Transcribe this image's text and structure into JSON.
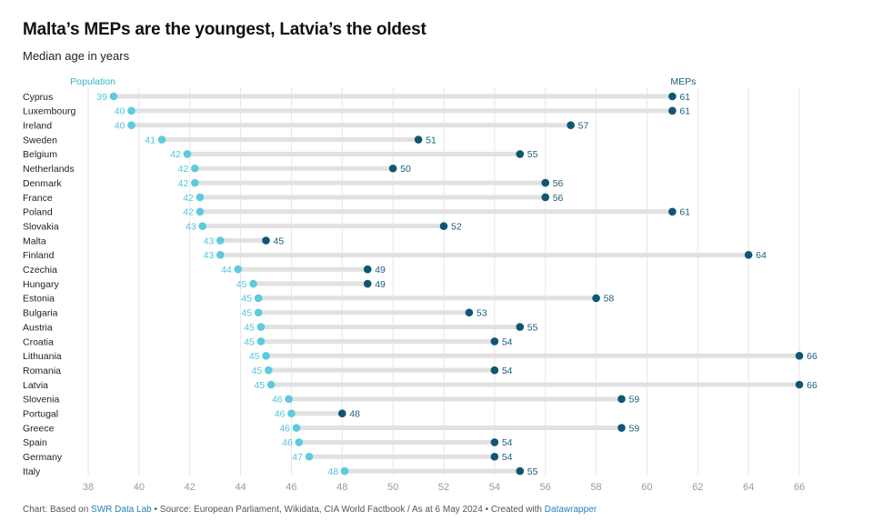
{
  "header": {
    "title": "Malta’s MEPs are the youngest, Latvia’s the oldest",
    "subtitle": "Median age in years"
  },
  "footer": {
    "prefix": "Chart: Based on ",
    "source_link": "SWR Data Lab",
    "middle": " • Source: European Parliament, Wikidata, CIA World Factbook / As at 6 May 2024 • Created with ",
    "tool_link": "Datawrapper"
  },
  "colors": {
    "population": "#5ccbdd",
    "meps": "#0f5673",
    "bar": "#e1e1e1",
    "grid": "#e6e6e6"
  },
  "chart_data": {
    "type": "dumbbell",
    "title": "Malta’s MEPs are the youngest, Latvia’s the oldest",
    "subtitle": "Median age in years",
    "xlim": [
      38,
      66
    ],
    "x_ticks": [
      38,
      40,
      42,
      44,
      46,
      48,
      50,
      52,
      54,
      56,
      58,
      60,
      62,
      64,
      66
    ],
    "legend": {
      "population": "Population",
      "meps": "MEPs"
    },
    "rows": [
      {
        "country": "Cyprus",
        "population": 39.0,
        "population_label": "39",
        "meps": 61,
        "meps_label": "61"
      },
      {
        "country": "Luxembourg",
        "population": 39.7,
        "population_label": "40",
        "meps": 61,
        "meps_label": "61"
      },
      {
        "country": "Ireland",
        "population": 39.7,
        "population_label": "40",
        "meps": 57,
        "meps_label": "57"
      },
      {
        "country": "Sweden",
        "population": 40.9,
        "population_label": "41",
        "meps": 51,
        "meps_label": "51"
      },
      {
        "country": "Belgium",
        "population": 41.9,
        "population_label": "42",
        "meps": 55,
        "meps_label": "55"
      },
      {
        "country": "Netherlands",
        "population": 42.2,
        "population_label": "42",
        "meps": 50,
        "meps_label": "50"
      },
      {
        "country": "Denmark",
        "population": 42.2,
        "population_label": "42",
        "meps": 56,
        "meps_label": "56"
      },
      {
        "country": "France",
        "population": 42.4,
        "population_label": "42",
        "meps": 56,
        "meps_label": "56"
      },
      {
        "country": "Poland",
        "population": 42.4,
        "population_label": "42",
        "meps": 61,
        "meps_label": "61"
      },
      {
        "country": "Slovakia",
        "population": 42.5,
        "population_label": "43",
        "meps": 52,
        "meps_label": "52"
      },
      {
        "country": "Malta",
        "population": 43.2,
        "population_label": "43",
        "meps": 45,
        "meps_label": "45"
      },
      {
        "country": "Finland",
        "population": 43.2,
        "population_label": "43",
        "meps": 64,
        "meps_label": "64"
      },
      {
        "country": "Czechia",
        "population": 43.9,
        "population_label": "44",
        "meps": 49,
        "meps_label": "49"
      },
      {
        "country": "Hungary",
        "population": 44.5,
        "population_label": "45",
        "meps": 49,
        "meps_label": "49"
      },
      {
        "country": "Estonia",
        "population": 44.7,
        "population_label": "45",
        "meps": 58,
        "meps_label": "58"
      },
      {
        "country": "Bulgaria",
        "population": 44.7,
        "population_label": "45",
        "meps": 53,
        "meps_label": "53"
      },
      {
        "country": "Austria",
        "population": 44.8,
        "population_label": "45",
        "meps": 55,
        "meps_label": "55"
      },
      {
        "country": "Croatia",
        "population": 44.8,
        "population_label": "45",
        "meps": 54,
        "meps_label": "54"
      },
      {
        "country": "Lithuania",
        "population": 45.0,
        "population_label": "45",
        "meps": 66,
        "meps_label": "66"
      },
      {
        "country": "Romania",
        "population": 45.1,
        "population_label": "45",
        "meps": 54,
        "meps_label": "54"
      },
      {
        "country": "Latvia",
        "population": 45.2,
        "population_label": "45",
        "meps": 66,
        "meps_label": "66"
      },
      {
        "country": "Slovenia",
        "population": 45.9,
        "population_label": "46",
        "meps": 59,
        "meps_label": "59"
      },
      {
        "country": "Portugal",
        "population": 46.0,
        "population_label": "46",
        "meps": 48,
        "meps_label": "48"
      },
      {
        "country": "Greece",
        "population": 46.2,
        "population_label": "46",
        "meps": 59,
        "meps_label": "59"
      },
      {
        "country": "Spain",
        "population": 46.3,
        "population_label": "46",
        "meps": 54,
        "meps_label": "54"
      },
      {
        "country": "Germany",
        "population": 46.7,
        "population_label": "47",
        "meps": 54,
        "meps_label": "54"
      },
      {
        "country": "Italy",
        "population": 48.1,
        "population_label": "48",
        "meps": 55,
        "meps_label": "55"
      }
    ]
  }
}
